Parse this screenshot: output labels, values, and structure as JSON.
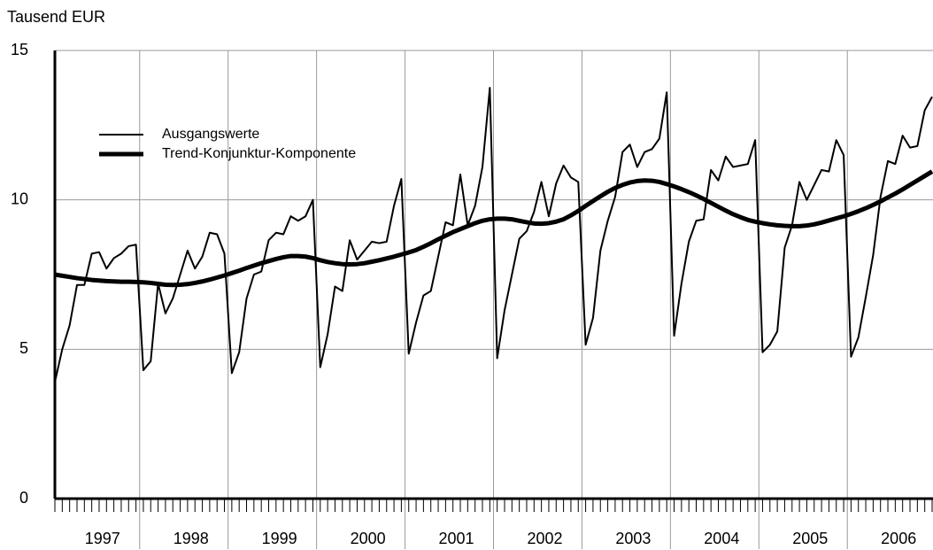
{
  "chart_data": {
    "type": "line",
    "y_label": "Tausend EUR",
    "years": [
      "1997",
      "1998",
      "1999",
      "2000",
      "2001",
      "2002",
      "2003",
      "2004",
      "2005",
      "2006"
    ],
    "ylim": [
      0,
      15
    ],
    "yticks": [
      0,
      5,
      10,
      15
    ],
    "grid": true,
    "legend": "upper-left",
    "series": [
      {
        "name": "Ausgangswerte",
        "color": "#000000",
        "width": 2,
        "values": [
          3.9,
          5.0,
          5.8,
          7.15,
          7.15,
          8.2,
          8.25,
          7.7,
          8.05,
          8.2,
          8.45,
          8.5,
          4.3,
          4.6,
          7.2,
          6.2,
          6.7,
          7.5,
          8.3,
          7.7,
          8.1,
          8.9,
          8.85,
          8.2,
          4.2,
          4.9,
          6.7,
          7.5,
          7.6,
          8.65,
          8.9,
          8.85,
          9.45,
          9.3,
          9.45,
          10.0,
          4.4,
          5.5,
          7.1,
          6.95,
          8.65,
          8.0,
          8.3,
          8.6,
          8.55,
          8.6,
          9.8,
          10.7,
          4.85,
          5.9,
          6.8,
          6.95,
          8.1,
          9.25,
          9.15,
          10.85,
          9.15,
          9.8,
          11.1,
          13.75,
          4.7,
          6.3,
          7.5,
          8.7,
          8.95,
          9.6,
          10.6,
          9.45,
          10.55,
          11.15,
          10.75,
          10.6,
          5.15,
          6.05,
          8.3,
          9.3,
          10.1,
          11.6,
          11.85,
          11.1,
          11.6,
          11.7,
          12.05,
          13.6,
          5.45,
          7.2,
          8.6,
          9.3,
          9.35,
          11.0,
          10.65,
          11.45,
          11.1,
          11.15,
          11.2,
          12.0,
          4.9,
          5.15,
          5.6,
          8.4,
          9.15,
          10.6,
          10.0,
          10.5,
          11.0,
          10.95,
          12.0,
          11.5,
          4.75,
          5.4,
          6.75,
          8.15,
          10.1,
          11.3,
          11.2,
          12.15,
          11.75,
          11.8,
          13.0,
          13.45
        ]
      },
      {
        "name": "Trend-Konjunktur-Komponente",
        "color": "#000000",
        "width": 5,
        "values": [
          7.5,
          7.46,
          7.42,
          7.38,
          7.35,
          7.32,
          7.3,
          7.28,
          7.27,
          7.26,
          7.26,
          7.25,
          7.24,
          7.22,
          7.19,
          7.16,
          7.15,
          7.16,
          7.18,
          7.22,
          7.27,
          7.33,
          7.4,
          7.47,
          7.55,
          7.63,
          7.72,
          7.8,
          7.88,
          7.95,
          8.02,
          8.08,
          8.12,
          8.12,
          8.1,
          8.05,
          7.98,
          7.92,
          7.88,
          7.85,
          7.84,
          7.85,
          7.88,
          7.93,
          7.98,
          8.04,
          8.1,
          8.17,
          8.24,
          8.32,
          8.43,
          8.55,
          8.68,
          8.8,
          8.92,
          9.02,
          9.12,
          9.22,
          9.3,
          9.35,
          9.37,
          9.37,
          9.35,
          9.3,
          9.25,
          9.21,
          9.2,
          9.22,
          9.27,
          9.35,
          9.48,
          9.63,
          9.8,
          9.96,
          10.12,
          10.27,
          10.4,
          10.5,
          10.58,
          10.63,
          10.65,
          10.64,
          10.6,
          10.53,
          10.45,
          10.36,
          10.26,
          10.15,
          10.03,
          9.9,
          9.77,
          9.64,
          9.52,
          9.42,
          9.33,
          9.27,
          9.22,
          9.18,
          9.15,
          9.13,
          9.12,
          9.12,
          9.14,
          9.18,
          9.24,
          9.31,
          9.38,
          9.45,
          9.53,
          9.62,
          9.72,
          9.83,
          9.95,
          10.08,
          10.21,
          10.35,
          10.5,
          10.65,
          10.8,
          10.95
        ]
      }
    ]
  }
}
